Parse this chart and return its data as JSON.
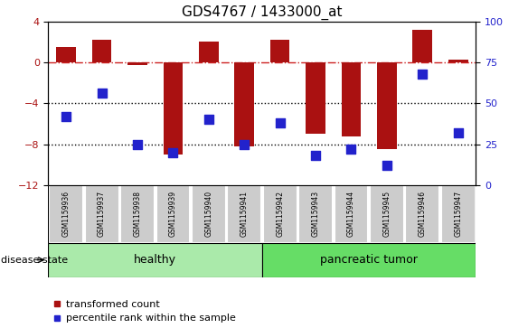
{
  "title": "GDS4767 / 1433000_at",
  "samples": [
    "GSM1159936",
    "GSM1159937",
    "GSM1159938",
    "GSM1159939",
    "GSM1159940",
    "GSM1159941",
    "GSM1159942",
    "GSM1159943",
    "GSM1159944",
    "GSM1159945",
    "GSM1159946",
    "GSM1159947"
  ],
  "transformed_count": [
    1.5,
    2.2,
    -0.3,
    -9.0,
    2.0,
    -8.2,
    2.2,
    -7.0,
    -7.2,
    -8.5,
    3.2,
    0.3
  ],
  "percentile_rank": [
    42,
    56,
    25,
    20,
    40,
    25,
    38,
    18,
    22,
    12,
    68,
    32
  ],
  "groups": [
    "healthy",
    "healthy",
    "healthy",
    "healthy",
    "healthy",
    "healthy",
    "pancreatic tumor",
    "pancreatic tumor",
    "pancreatic tumor",
    "pancreatic tumor",
    "pancreatic tumor",
    "pancreatic tumor"
  ],
  "ylim_left": [
    -12,
    4
  ],
  "ylim_right": [
    0,
    100
  ],
  "yticks_left": [
    4,
    0,
    -4,
    -8,
    -12
  ],
  "yticks_right": [
    100,
    75,
    50,
    25,
    0
  ],
  "hlines": [
    -4.0,
    -8.0
  ],
  "bar_color": "#aa1111",
  "dot_color": "#2222cc",
  "hline_color": "black",
  "dashed_hline_color": "#cc2222",
  "healthy_color": "#aaeaaa",
  "tumor_color": "#66dd66",
  "sample_box_color": "#cccccc",
  "sample_box_edge": "#aaaaaa",
  "group_label_fontsize": 9,
  "sample_fontsize": 5.5,
  "title_fontsize": 11,
  "bar_width": 0.55,
  "dot_size": 55,
  "legend_fontsize": 8
}
